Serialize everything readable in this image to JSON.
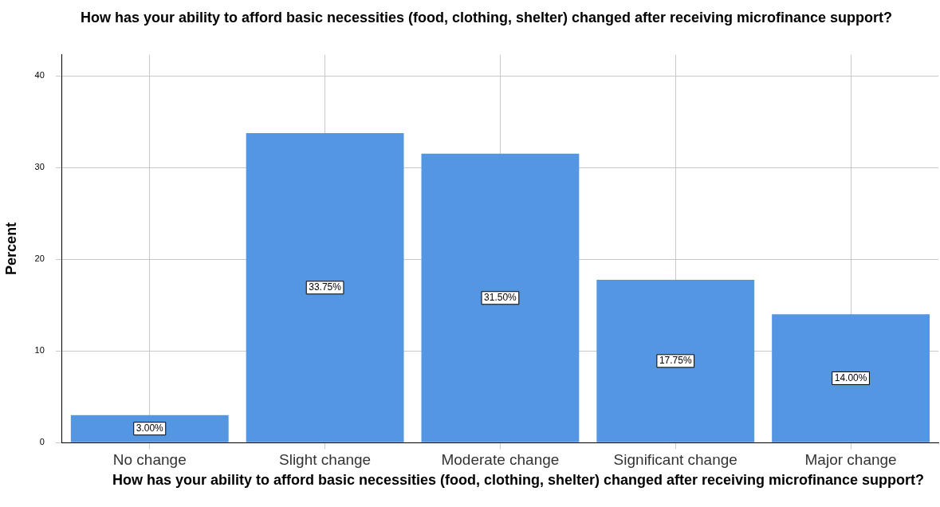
{
  "chart_data": {
    "type": "bar",
    "title": "How has your ability to afford basic necessities (food, clothing, shelter) changed after receiving microfinance support?",
    "xlabel": "How has your ability to afford basic necessities (food, clothing, shelter) changed after receiving microfinance support?",
    "ylabel": "Percent",
    "categories": [
      "No change",
      "Slight change",
      "Moderate change",
      "Significant change",
      "Major change"
    ],
    "values": [
      3,
      33.75,
      31.5,
      17.75,
      14
    ],
    "value_labels": [
      "3.00%",
      "33.75%",
      "31.50%",
      "17.75%",
      "14.00%"
    ],
    "color": "#5596e3",
    "ylim": [
      0,
      42.3
    ],
    "yticks": [
      0,
      10,
      20,
      30,
      40
    ],
    "grid": true
  }
}
